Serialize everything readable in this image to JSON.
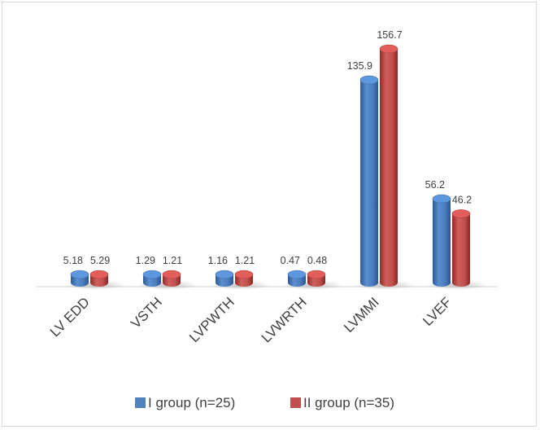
{
  "chart_data": {
    "type": "bar",
    "style": "3d-cylinder",
    "title": "",
    "xlabel": "",
    "ylabel": "",
    "categories": [
      "LV EDD",
      "VSTH",
      "LVPWTH",
      "LVWRTH",
      "LVMMI",
      "LVEF"
    ],
    "series": [
      {
        "name": "I group (n=25)",
        "color": "#4f81bd",
        "values": [
          5.18,
          1.29,
          1.16,
          0.47,
          135.9,
          56.2
        ],
        "labels": [
          "5.18",
          "1.29",
          "1.16",
          "0.47",
          "135.9",
          "56.2"
        ]
      },
      {
        "name": "II group (n=35)",
        "color": "#c0504d",
        "values": [
          5.29,
          1.21,
          1.21,
          0.48,
          156.7,
          46.2
        ],
        "labels": [
          "5.29",
          "1.21",
          "1.21",
          "0.48",
          "156.7",
          "46.2"
        ]
      }
    ],
    "grid": false,
    "legend_position": "bottom",
    "axis_label_rotation": -45
  }
}
